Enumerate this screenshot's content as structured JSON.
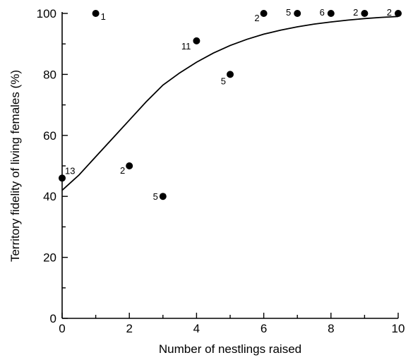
{
  "chart_data": {
    "type": "scatter",
    "xlabel": "Number of nestlings raised",
    "ylabel": "Territory fidelity of living females (%)",
    "xlim": [
      0,
      10
    ],
    "ylim": [
      0,
      100
    ],
    "x_ticks": [
      0,
      2,
      4,
      6,
      8,
      10
    ],
    "y_ticks": [
      0,
      20,
      40,
      60,
      80,
      100
    ],
    "grid": false,
    "series": [
      {
        "points": [
          {
            "x": 0,
            "y": 46,
            "n": "13"
          },
          {
            "x": 1,
            "y": 100,
            "n": "1"
          },
          {
            "x": 2,
            "y": 50,
            "n": "2"
          },
          {
            "x": 3,
            "y": 40,
            "n": "5"
          },
          {
            "x": 4,
            "y": 91,
            "n": "11"
          },
          {
            "x": 5,
            "y": 80,
            "n": "5"
          },
          {
            "x": 6,
            "y": 100,
            "n": "2"
          },
          {
            "x": 7,
            "y": 100,
            "n": "5"
          },
          {
            "x": 8,
            "y": 100,
            "n": "6"
          },
          {
            "x": 9,
            "y": 100,
            "n": "2"
          },
          {
            "x": 10,
            "y": 100,
            "n": "2"
          }
        ]
      }
    ],
    "fitted_curve": {
      "x": [
        0,
        0.5,
        1,
        1.5,
        2,
        2.5,
        3,
        3.5,
        4,
        4.5,
        5,
        5.5,
        6,
        6.5,
        7,
        7.5,
        8,
        8.5,
        9,
        9.5,
        10
      ],
      "y": [
        42,
        47,
        53,
        59,
        65,
        71,
        76.5,
        80.5,
        84,
        87,
        89.5,
        91.5,
        93.2,
        94.5,
        95.6,
        96.5,
        97.2,
        97.8,
        98.3,
        98.7,
        99
      ]
    }
  }
}
